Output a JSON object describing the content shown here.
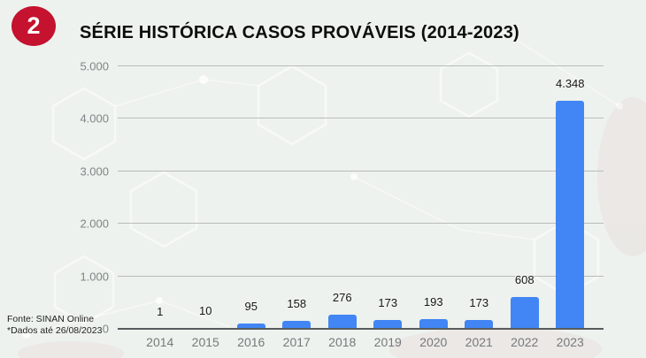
{
  "badge": {
    "number": "2"
  },
  "title": "SÉRIE HISTÓRICA CASOS PROVÁVEIS (2014-2023)",
  "footer": {
    "source": "Fonte: SINAN Online",
    "note": "*Dados até 26/08/2023"
  },
  "chart_data": {
    "type": "bar",
    "title": "SÉRIE HISTÓRICA CASOS PROVÁVEIS (2014-2023)",
    "categories": [
      "2014",
      "2015",
      "2016",
      "2017",
      "2018",
      "2019",
      "2020",
      "2021",
      "2022",
      "2023"
    ],
    "values": [
      1,
      10,
      95,
      158,
      276,
      173,
      193,
      173,
      608,
      4348
    ],
    "value_labels": [
      "1",
      "10",
      "95",
      "158",
      "276",
      "173",
      "193",
      "173",
      "608",
      "4.348"
    ],
    "xlabel": "",
    "ylabel": "",
    "ylim": [
      0,
      5000
    ],
    "yticks": [
      0,
      1000,
      2000,
      3000,
      4000,
      5000
    ],
    "ytick_labels": [
      "0",
      "1.000",
      "2.000",
      "3.000",
      "4.000",
      "5.000"
    ],
    "grid": true,
    "legend": "none",
    "bar_color": "#4285f4"
  },
  "colors": {
    "background": "#edf2ee",
    "bar": "#4285f4",
    "badge": "#c4122f",
    "gridline": "#b9bcba",
    "axis_text": "#76797c"
  }
}
